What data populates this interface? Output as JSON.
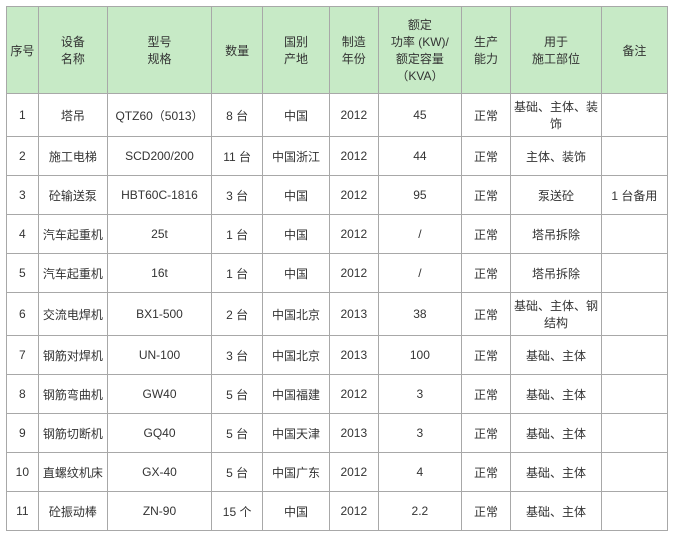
{
  "colors": {
    "header_bg": "#c7eac6",
    "border": "#a8a8a8",
    "text": "#333333",
    "background": "#ffffff"
  },
  "font": {
    "family": "SimSun",
    "size_pt": 12
  },
  "table": {
    "type": "table",
    "header": {
      "seq": "序号",
      "name_l1": "设备",
      "name_l2": "名称",
      "model_l1": "型号",
      "model_l2": "规格",
      "qty": "数量",
      "origin_l1": "国别",
      "origin_l2": "产地",
      "year_l1": "制造",
      "year_l2": "年份",
      "power_l1": "额定",
      "power_l2": "功率 (KW)/",
      "power_l3": "额定容量",
      "power_l4": "（KVA）",
      "cap_l1": "生产",
      "cap_l2": "能力",
      "use_l1": "用于",
      "use_l2": "施工部位",
      "note": "备注"
    },
    "rows": [
      {
        "seq": "1",
        "name": "塔吊",
        "model": "QTZ60（5013）",
        "qty": "8 台",
        "origin": "中国",
        "year": "2012",
        "power": "45",
        "cap": "正常",
        "use": "基础、主体、装饰",
        "note": ""
      },
      {
        "seq": "2",
        "name": "施工电梯",
        "model": "SCD200/200",
        "qty": "11 台",
        "origin": "中国浙江",
        "year": "2012",
        "power": "44",
        "cap": "正常",
        "use": "主体、装饰",
        "note": ""
      },
      {
        "seq": "3",
        "name": "砼输送泵",
        "model": "HBT60C-1816",
        "qty": "3 台",
        "origin": "中国",
        "year": "2012",
        "power": "95",
        "cap": "正常",
        "use": "泵送砼",
        "note": "1 台备用"
      },
      {
        "seq": "4",
        "name": "汽车起重机",
        "model": "25t",
        "qty": "1 台",
        "origin": "中国",
        "year": "2012",
        "power": "/",
        "cap": "正常",
        "use": "塔吊拆除",
        "note": ""
      },
      {
        "seq": "5",
        "name": "汽车起重机",
        "model": "16t",
        "qty": "1 台",
        "origin": "中国",
        "year": "2012",
        "power": "/",
        "cap": "正常",
        "use": "塔吊拆除",
        "note": ""
      },
      {
        "seq": "6",
        "name": "交流电焊机",
        "model": "BX1-500",
        "qty": "2 台",
        "origin": "中国北京",
        "year": "2013",
        "power": "38",
        "cap": "正常",
        "use": "基础、主体、钢结构",
        "note": ""
      },
      {
        "seq": "7",
        "name": "钢筋对焊机",
        "model": "UN-100",
        "qty": "3 台",
        "origin": "中国北京",
        "year": "2013",
        "power": "100",
        "cap": "正常",
        "use": "基础、主体",
        "note": ""
      },
      {
        "seq": "8",
        "name": "钢筋弯曲机",
        "model": "GW40",
        "qty": "5 台",
        "origin": "中国福建",
        "year": "2012",
        "power": "3",
        "cap": "正常",
        "use": "基础、主体",
        "note": ""
      },
      {
        "seq": "9",
        "name": "钢筋切断机",
        "model": "GQ40",
        "qty": "5 台",
        "origin": "中国天津",
        "year": "2013",
        "power": "3",
        "cap": "正常",
        "use": "基础、主体",
        "note": ""
      },
      {
        "seq": "10",
        "name": "直螺纹机床",
        "model": "GX-40",
        "qty": "5 台",
        "origin": "中国广东",
        "year": "2012",
        "power": "4",
        "cap": "正常",
        "use": "基础、主体",
        "note": ""
      },
      {
        "seq": "11",
        "name": "砼振动棒",
        "model": "ZN-90",
        "qty": "15 个",
        "origin": "中国",
        "year": "2012",
        "power": "2.2",
        "cap": "正常",
        "use": "基础、主体",
        "note": ""
      }
    ]
  }
}
